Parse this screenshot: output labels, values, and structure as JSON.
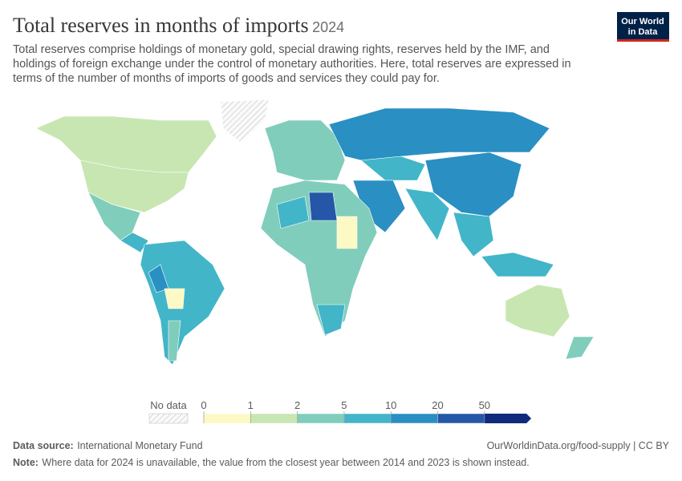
{
  "header": {
    "title": "Total reserves in months of imports",
    "year": "2024",
    "subtitle": [
      "Total reserves comprise holdings of monetary gold, special drawing rights, reserves held by the IMF, and",
      "holdings of foreign exchange under the control of monetary authorities. Here, total reserves are expressed in",
      "terms of the number of months of imports of goods and services they could pay for."
    ],
    "logo": [
      "Our World",
      "in Data"
    ]
  },
  "legend": {
    "no_data": "No data",
    "ticks": [
      0,
      1,
      2,
      5,
      10,
      20,
      50
    ],
    "colors": [
      "#fdf9c4",
      "#c8e6b2",
      "#80cdbb",
      "#42b5c8",
      "#2a8fc2",
      "#2457a8",
      "#102b7c"
    ]
  },
  "footer": {
    "source_label": "Data source:",
    "source": "International Monetary Fund",
    "url": "OurWorldinData.org/food-supply | CC BY",
    "note_label": "Note:",
    "note": "Where data for 2024 is unavailable, the value from the closest year between 2014 and 2023 is shown instead."
  }
}
